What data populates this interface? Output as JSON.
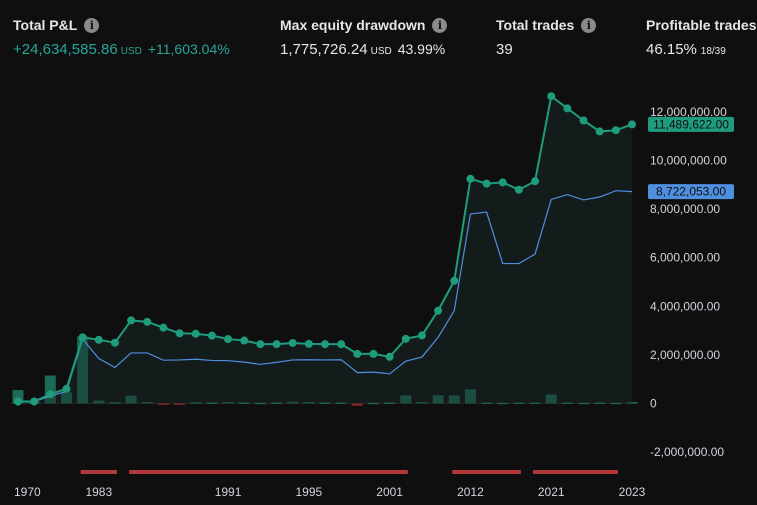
{
  "stats": {
    "total_pnl": {
      "label": "Total P&L",
      "value": "+24,634,585.86",
      "unit": "USD",
      "pct": "+11,603.04%"
    },
    "max_drawdown": {
      "label": "Max equity drawdown",
      "value": "1,775,726.24",
      "unit": "USD",
      "pct": "43.99%"
    },
    "total_trades": {
      "label": "Total trades",
      "value": "39"
    },
    "profitable_trades": {
      "label": "Profitable trades",
      "value": "46.15%",
      "ratio": "18/39"
    }
  },
  "colors": {
    "equity": "#1f9c7e",
    "buyhold": "#4f8fe0",
    "positive_bar": "#1f7a64",
    "negative_bar": "#8b2a2a",
    "drawdown_band": "#b23a3a",
    "background": "#0f0f0f"
  },
  "chart_data": {
    "type": "line",
    "x_ticks": [
      "1970",
      "1983",
      "1991",
      "1995",
      "2001",
      "2012",
      "2021",
      "2023"
    ],
    "y_ticks": [
      "12,000,000.00",
      "10,000,000.00",
      "8,000,000.00",
      "6,000,000.00",
      "4,000,000.00",
      "2,000,000.00",
      "0",
      "-2,000,000.00"
    ],
    "y_tick_values": [
      12000000,
      10000000,
      8000000,
      6000000,
      4000000,
      2000000,
      0,
      -2000000
    ],
    "ylim": [
      -2400000,
      13000000
    ],
    "last_equity_label": "11,489,622.00",
    "last_buyhold_label": "8,722,053.00",
    "series": [
      {
        "name": "",
        "values": [
          80000,
          80000,
          380000,
          600000,
          2720000,
          2620000,
          2500000,
          3420000,
          3360000,
          3120000,
          2890000,
          2870000,
          2790000,
          2650000,
          2590000,
          2440000,
          2440000,
          2490000,
          2450000,
          2440000,
          2440000,
          2040000,
          2040000,
          1920000,
          2660000,
          2800000,
          3820000,
          5050000,
          9250000,
          9050000,
          9100000,
          8800000,
          9150000,
          12650000,
          12150000,
          11650000,
          11200000,
          11250000,
          11489622
        ]
      },
      {
        "name": "",
        "values": [
          80000,
          80000,
          300000,
          500000,
          2650000,
          1850000,
          1480000,
          2080000,
          2080000,
          1780000,
          1790000,
          1820000,
          1770000,
          1760000,
          1700000,
          1610000,
          1690000,
          1790000,
          1800000,
          1790000,
          1800000,
          1270000,
          1290000,
          1220000,
          1740000,
          1910000,
          2720000,
          3820000,
          7800000,
          7880000,
          5760000,
          5760000,
          6150000,
          8400000,
          8600000,
          8380000,
          8500000,
          8760000,
          8722053
        ]
      }
    ],
    "bars": [
      550000,
      80000,
      1150000,
      460000,
      2750000,
      120000,
      50000,
      320000,
      60000,
      -60000,
      -40000,
      50000,
      40000,
      60000,
      40000,
      30000,
      40000,
      70000,
      60000,
      40000,
      40000,
      -100000,
      30000,
      40000,
      330000,
      60000,
      340000,
      330000,
      580000,
      40000,
      30000,
      40000,
      40000,
      370000,
      40000,
      30000,
      40000,
      30000,
      60000
    ],
    "drawdown_periods": [
      [
        4,
        6
      ],
      [
        7,
        24
      ],
      [
        27,
        31
      ],
      [
        32,
        37
      ]
    ]
  }
}
